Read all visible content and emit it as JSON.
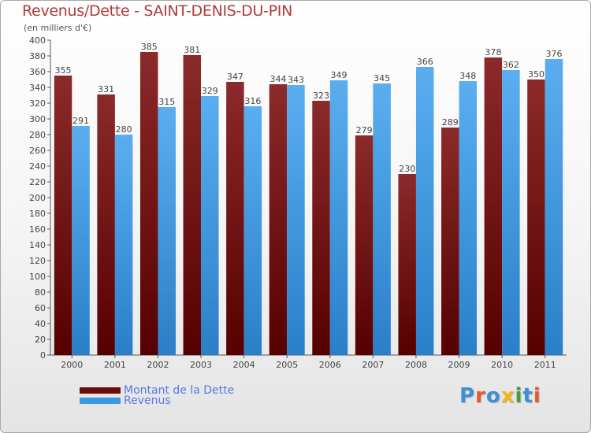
{
  "title": "Revenus/Dette - SAINT-DENIS-DU-PIN",
  "subtitle": "(en milliers d'€)",
  "logo": {
    "text": "Proxiti",
    "letters": [
      {
        "char": "P",
        "color": "#3f8fd6"
      },
      {
        "char": "r",
        "color": "#e8592a"
      },
      {
        "char": "o",
        "color": "#3f8fd6"
      },
      {
        "char": "x",
        "color": "#f2b61b"
      },
      {
        "char": "i",
        "color": "#4c9a3c"
      },
      {
        "char": "t",
        "color": "#3f8fd6"
      },
      {
        "char": "i",
        "color": "#e8592a"
      }
    ]
  },
  "colors": {
    "dette": "#7a1515",
    "revenus": "#3a97e0",
    "label": "#444444",
    "legend_text": "#5b77e6"
  },
  "chart_data": {
    "type": "bar",
    "title": "Revenus/Dette - SAINT-DENIS-DU-PIN",
    "subtitle": "(en milliers d'€)",
    "xlabel": "",
    "ylabel": "",
    "ylim": [
      0,
      400
    ],
    "ytick_step": 20,
    "grid": false,
    "categories": [
      "2000",
      "2001",
      "2002",
      "2003",
      "2004",
      "2005",
      "2006",
      "2007",
      "2008",
      "2009",
      "2010",
      "2011"
    ],
    "series": [
      {
        "name": "Montant de la Dette",
        "values": [
          355,
          331,
          385,
          381,
          347,
          344,
          323,
          279,
          230,
          289,
          378,
          350
        ]
      },
      {
        "name": "Revenus",
        "values": [
          291,
          280,
          315,
          329,
          316,
          343,
          349,
          345,
          366,
          348,
          362,
          376
        ]
      }
    ],
    "legend": [
      "Montant de la Dette",
      "Revenus"
    ],
    "legend_position": "bottom-left"
  }
}
